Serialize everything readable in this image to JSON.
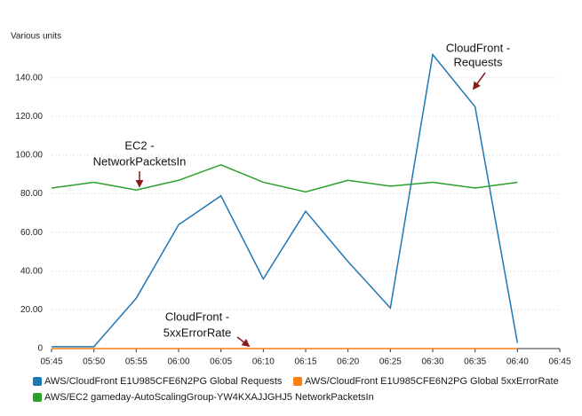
{
  "chart_data": {
    "type": "line",
    "y_label": "Various units",
    "categories": [
      "05:45",
      "05:50",
      "05:55",
      "06:00",
      "06:05",
      "06:10",
      "06:15",
      "06:20",
      "06:25",
      "06:30",
      "06:35",
      "06:40",
      "06:45"
    ],
    "series": [
      {
        "name": "AWS/CloudFront E1U985CFE6N2PG Global Requests",
        "color": "#1f77b4",
        "values": [
          1,
          1,
          26,
          64,
          79,
          36,
          71,
          45,
          21,
          152,
          125,
          3,
          null
        ]
      },
      {
        "name": "AWS/CloudFront E1U985CFE6N2PG Global 5xxErrorRate",
        "color": "#ff7f0e",
        "values": [
          0,
          0,
          0,
          0,
          0,
          0,
          0,
          0,
          0,
          0,
          0,
          0,
          null
        ]
      },
      {
        "name": "AWS/EC2 gameday-AutoScalingGroup-YW4KXAJJGHJ5 NetworkPacketsIn",
        "color": "#2ca02c",
        "values": [
          83,
          86,
          82,
          87,
          95,
          86,
          81,
          87,
          84,
          86,
          83,
          86,
          null
        ]
      }
    ],
    "ylim": [
      0,
      155
    ],
    "yticks": [
      0,
      {
        "value": 20,
        "label": "20.00"
      },
      {
        "value": 40,
        "label": "40.00"
      },
      {
        "value": 60,
        "label": "60.00"
      },
      {
        "value": 80,
        "label": "80.00"
      },
      {
        "value": 100,
        "label": "100.00"
      },
      {
        "value": 120,
        "label": "120.00"
      },
      {
        "value": 140,
        "label": "140.00"
      }
    ],
    "grid": true,
    "annotations": [
      {
        "lines": [
          "EC2 -",
          "NetworkPacketsIn"
        ]
      },
      {
        "lines": [
          "CloudFront -",
          "Requests"
        ]
      },
      {
        "lines": [
          "CloudFront -",
          "5xxErrorRate"
        ]
      }
    ]
  }
}
